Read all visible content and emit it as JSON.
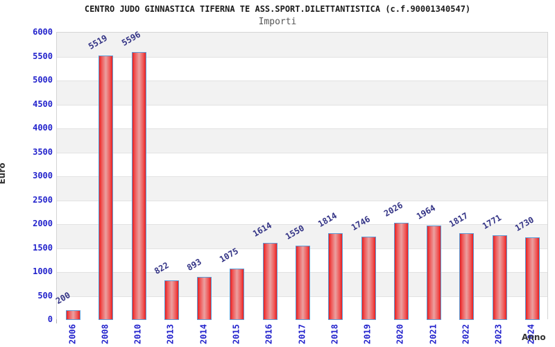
{
  "header": {
    "title": "CENTRO JUDO GINNASTICA TIFERNA TE ASS.SPORT.DILETTANTISTICA (c.f.90001340547)",
    "subtitle": "Importi"
  },
  "chart_data": {
    "type": "bar",
    "title": "CENTRO JUDO GINNASTICA TIFERNA TE ASS.SPORT.DILETTANTISTICA (c.f.90001340547)",
    "subtitle": "Importi",
    "categories": [
      "2006",
      "2008",
      "2010",
      "2013",
      "2014",
      "2015",
      "2016",
      "2017",
      "2018",
      "2019",
      "2020",
      "2021",
      "2022",
      "2023",
      "2024"
    ],
    "values": [
      200,
      5519,
      5596,
      822,
      893,
      1075,
      1614,
      1550,
      1814,
      1746,
      2026,
      1964,
      1817,
      1771,
      1730
    ],
    "xlabel": "Anno",
    "ylabel": "Euro",
    "ylim": [
      0,
      6000
    ],
    "ytick_step": 500,
    "yticks": [
      0,
      500,
      1000,
      1500,
      2000,
      2500,
      3000,
      3500,
      4000,
      4500,
      5000,
      5500,
      6000
    ],
    "grid": true,
    "legend_position": "none",
    "value_labels_shown": true,
    "colors": {
      "bar_edge": "#e81f1f",
      "bar_center": "#eba0a0",
      "bar_border": "#5b9bd5",
      "axis_tick_label": "#2323cc",
      "value_label": "#333385",
      "band_gray": "#f2f2f2",
      "grid_line": "#e2e2e2",
      "title_color": "#1a1a1a",
      "subtitle_color": "#555555"
    }
  }
}
